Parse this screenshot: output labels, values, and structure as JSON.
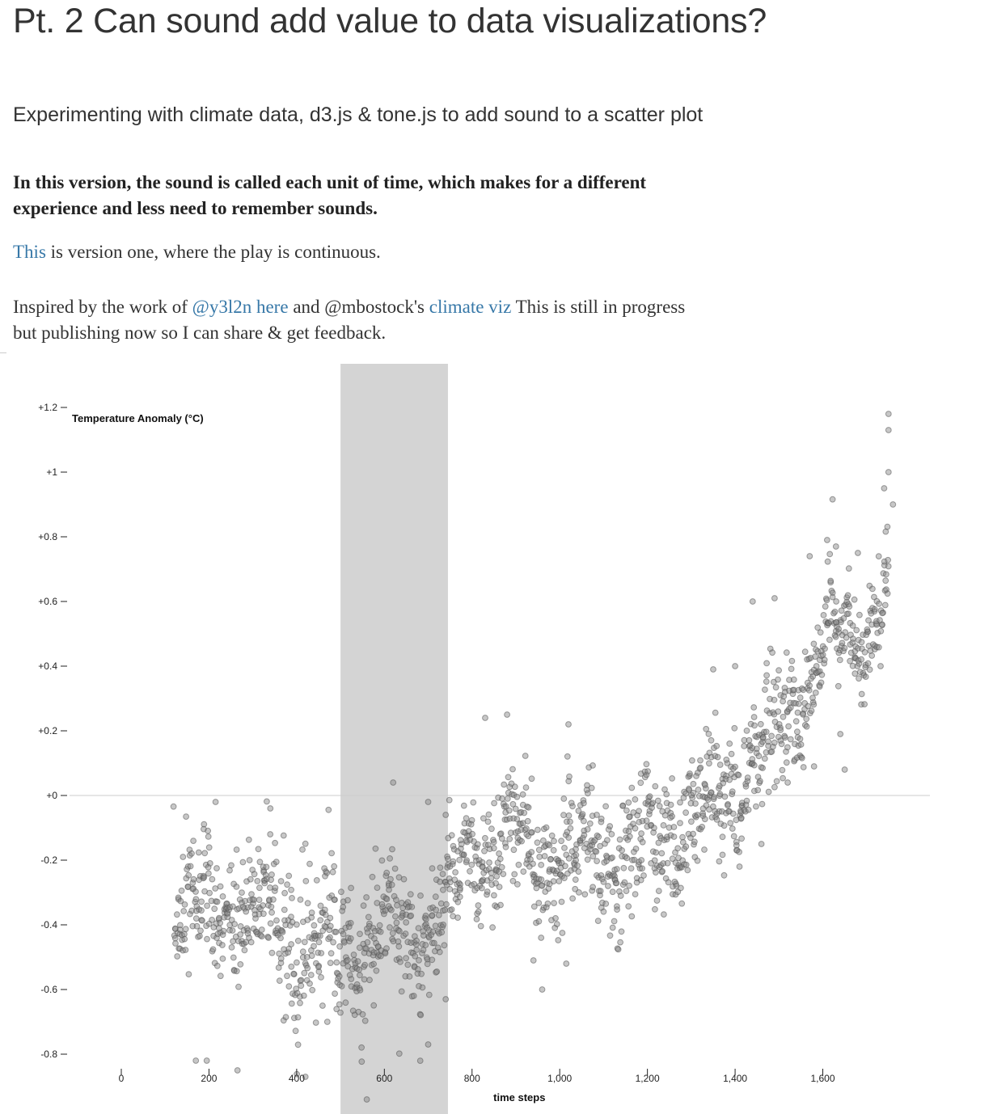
{
  "page": {
    "title": "Pt. 2 Can sound add value to data visualizations?",
    "subtitle": "Experimenting with climate data, d3.js & tone.js to add sound to a scatter plot",
    "lead": "In this version, the sound is called each unit of time, which makes for a different experience and less need to remember sounds.",
    "p1": {
      "link": "This",
      "rest": " is version one, where the play is continuous."
    },
    "p2": {
      "t1": "Inspired by the work of ",
      "link1": "@y3l2n here",
      "t2": " and @mbostock's ",
      "link2": "climate viz",
      "t3": " This is still in progress but publishing now so I can share & get feedback."
    },
    "colors": {
      "link": "#3778a8",
      "text": "#333333",
      "highlight": "#d4d4d4",
      "zero_line": "#cccccc"
    }
  },
  "chart_data": {
    "type": "scatter",
    "title": "",
    "xlabel": "time steps",
    "ylabel": "Temperature Anomaly (°C)",
    "xlim": [
      0,
      1780
    ],
    "ylim": [
      -0.95,
      1.35
    ],
    "x_ticks": [
      0,
      200,
      400,
      600,
      800,
      1000,
      1200,
      1400,
      1600
    ],
    "x_tick_labels": [
      "0",
      "200",
      "400",
      "600",
      "800",
      "1,000",
      "1,200",
      "1,400",
      "1,600"
    ],
    "y_ticks": [
      1.2,
      1.0,
      0.8,
      0.6,
      0.4,
      0.2,
      0,
      -0.2,
      -0.4,
      -0.6,
      -0.8
    ],
    "y_tick_labels": [
      "+1.2",
      "+1",
      "+0.8",
      "+0.6",
      "+0.4",
      "+0.2",
      "+0",
      "-0.2",
      "-0.4",
      "-0.6",
      "-0.8"
    ],
    "reference_line": {
      "y": 0
    },
    "highlight_band": {
      "x_start": 500,
      "x_end": 745
    },
    "grid": false,
    "legend": "none",
    "trend": {
      "x": [
        120,
        200,
        300,
        400,
        500,
        600,
        700,
        760,
        800,
        900,
        1000,
        1100,
        1200,
        1300,
        1400,
        1450,
        1500,
        1550,
        1600,
        1650,
        1700,
        1750
      ],
      "y": [
        -0.32,
        -0.38,
        -0.35,
        -0.45,
        -0.48,
        -0.43,
        -0.4,
        -0.32,
        -0.17,
        -0.12,
        -0.2,
        -0.18,
        -0.17,
        -0.08,
        0.03,
        0.12,
        0.18,
        0.32,
        0.45,
        0.48,
        0.52,
        0.68
      ],
      "spread": [
        0.12,
        0.13,
        0.12,
        0.14,
        0.14,
        0.12,
        0.12,
        0.11,
        0.1,
        0.11,
        0.11,
        0.12,
        0.12,
        0.12,
        0.1,
        0.1,
        0.11,
        0.1,
        0.09,
        0.08,
        0.08,
        0.08
      ]
    },
    "point_count": 1640,
    "outliers": [
      {
        "x": 170,
        "y": -0.82
      },
      {
        "x": 195,
        "y": -0.82
      },
      {
        "x": 265,
        "y": -0.85
      },
      {
        "x": 215,
        "y": -0.02
      },
      {
        "x": 340,
        "y": -0.04
      },
      {
        "x": 560,
        "y": -0.94
      },
      {
        "x": 620,
        "y": 0.04
      },
      {
        "x": 700,
        "y": -0.02
      },
      {
        "x": 740,
        "y": -0.06
      },
      {
        "x": 830,
        "y": 0.24
      },
      {
        "x": 880,
        "y": 0.25
      },
      {
        "x": 1020,
        "y": 0.22
      },
      {
        "x": 1015,
        "y": -0.52
      },
      {
        "x": 960,
        "y": -0.6
      },
      {
        "x": 1570,
        "y": 0.74
      },
      {
        "x": 1610,
        "y": 0.79
      },
      {
        "x": 1630,
        "y": 0.77
      },
      {
        "x": 1680,
        "y": 0.75
      },
      {
        "x": 1750,
        "y": 1.18
      },
      {
        "x": 1750,
        "y": 1.13
      },
      {
        "x": 1750,
        "y": 1.0
      },
      {
        "x": 1740,
        "y": 0.95
      },
      {
        "x": 1760,
        "y": 0.9
      },
      {
        "x": 1350,
        "y": 0.39
      },
      {
        "x": 1400,
        "y": 0.4
      },
      {
        "x": 1440,
        "y": 0.6
      },
      {
        "x": 1490,
        "y": 0.61
      },
      {
        "x": 1410,
        "y": -0.22
      },
      {
        "x": 1460,
        "y": -0.15
      },
      {
        "x": 470,
        "y": -0.7
      },
      {
        "x": 420,
        "y": -0.87
      },
      {
        "x": 740,
        "y": -0.63
      },
      {
        "x": 700,
        "y": -0.77
      },
      {
        "x": 940,
        "y": -0.51
      },
      {
        "x": 1580,
        "y": 0.09
      },
      {
        "x": 1650,
        "y": 0.08
      },
      {
        "x": 1640,
        "y": 0.19
      },
      {
        "x": 1520,
        "y": 0.04
      }
    ]
  }
}
